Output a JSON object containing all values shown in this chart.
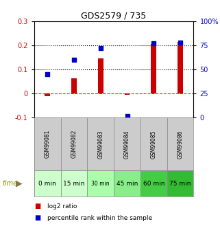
{
  "title": "GDS2579 / 735",
  "samples": [
    "GSM99081",
    "GSM99082",
    "GSM99083",
    "GSM99084",
    "GSM99085",
    "GSM99086"
  ],
  "time_labels": [
    "0 min",
    "15 min",
    "30 min",
    "45 min",
    "60 min",
    "75 min"
  ],
  "time_colors": [
    "#ccffcc",
    "#bbffbb",
    "#88ee88",
    "#77dd77",
    "#44cc44",
    "#33bb33"
  ],
  "log2_ratio": [
    -0.01,
    0.065,
    0.145,
    -0.005,
    0.205,
    0.215
  ],
  "percentile_rank_pct": [
    45,
    60,
    72,
    2,
    77,
    78
  ],
  "bar_color": "#cc0000",
  "dot_color": "#0000cc",
  "ylim_left": [
    -0.1,
    0.3
  ],
  "ylim_right": [
    0,
    100
  ],
  "yticks_left": [
    -0.1,
    0.0,
    0.1,
    0.2,
    0.3
  ],
  "ytick_labels_left": [
    "-0.1",
    "0",
    "0.1",
    "0.2",
    "0.3"
  ],
  "yticks_right": [
    0,
    25,
    50,
    75,
    100
  ],
  "ytick_labels_right": [
    "0",
    "25",
    "50",
    "75",
    "100%"
  ],
  "hline_dotted": [
    0.1,
    0.2
  ],
  "hline_dashed": 0.0,
  "sample_bg_color": "#cccccc",
  "legend_log2": "log2 ratio",
  "legend_pct": "percentile rank within the sample",
  "time_row_colors_correct": [
    "#ccffcc",
    "#ccffcc",
    "#aaffaa",
    "#88ee88",
    "#44cc44",
    "#33bb33"
  ]
}
